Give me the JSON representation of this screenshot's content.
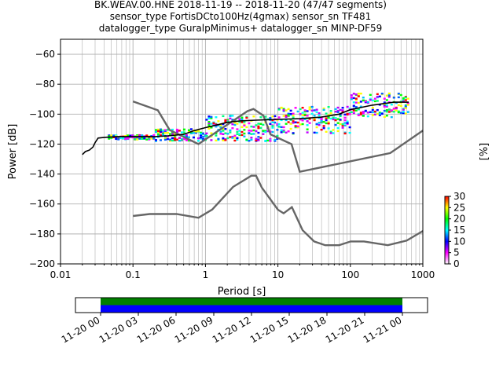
{
  "title_lines": [
    "BK.WEAV.00.HNE   2018-11-19 -- 2018-11-20  (47/47 segments)",
    "sensor_type FortisDCto100Hz(4gmax) sensor_sn TF481",
    "datalogger_type GuralpMinimus+ datalogger_sn MINP-DF59"
  ],
  "chart_data": [
    {
      "type": "heatmap",
      "name": "ppsd",
      "xlabel": "Period [s]",
      "ylabel": "Power [dB]",
      "xscale": "log",
      "xlim": [
        0.01,
        1000
      ],
      "ylim": [
        -200,
        -50
      ],
      "xticks": [
        0.01,
        0.1,
        1,
        10,
        100,
        1000
      ],
      "xtick_labels": [
        "0.01",
        "0.1",
        "1",
        "10",
        "100",
        "1000"
      ],
      "yticks": [
        -60,
        -80,
        -100,
        -120,
        -140,
        -160,
        -180,
        -200
      ],
      "grid": true,
      "colorbar": {
        "label": "[%]",
        "min": 0,
        "max": 30,
        "ticks": [
          0,
          5,
          10,
          15,
          20,
          25,
          30
        ],
        "colors": [
          "#ffffff",
          "#ff00ff",
          "#0000ff",
          "#00ffff",
          "#00ff00",
          "#ffff00",
          "#ff0000"
        ]
      },
      "density_bands": [
        {
          "period_min": 0.045,
          "period_max": 0.2,
          "power_min": -117,
          "power_max": -114
        },
        {
          "period_min": 0.2,
          "period_max": 1.0,
          "power_min": -118,
          "power_max": -110
        },
        {
          "period_min": 1.0,
          "period_max": 10,
          "power_min": -118,
          "power_max": -101
        },
        {
          "period_min": 10,
          "period_max": 100,
          "power_min": -113,
          "power_max": -95
        },
        {
          "period_min": 100,
          "period_max": 640,
          "power_min": -102,
          "power_max": -86
        }
      ],
      "mean_curve": {
        "color": "#000000",
        "points": [
          [
            0.02,
            -127
          ],
          [
            0.022,
            -125
          ],
          [
            0.025,
            -124
          ],
          [
            0.028,
            -122
          ],
          [
            0.03,
            -119
          ],
          [
            0.033,
            -116
          ],
          [
            0.04,
            -115.5
          ],
          [
            0.06,
            -115
          ],
          [
            0.1,
            -115
          ],
          [
            0.2,
            -115
          ],
          [
            0.3,
            -114.5
          ],
          [
            0.5,
            -113.5
          ],
          [
            0.7,
            -111
          ],
          [
            1,
            -109
          ],
          [
            1.5,
            -107
          ],
          [
            2,
            -105.5
          ],
          [
            3,
            -104.5
          ],
          [
            5,
            -104
          ],
          [
            10,
            -103.5
          ],
          [
            20,
            -103
          ],
          [
            40,
            -102
          ],
          [
            70,
            -100
          ],
          [
            100,
            -97
          ],
          [
            200,
            -94
          ],
          [
            400,
            -92
          ],
          [
            640,
            -92
          ]
        ]
      },
      "noise_models": [
        {
          "name": "NHNM",
          "color": "#666666",
          "points": [
            [
              0.1,
              -91.5
            ],
            [
              0.22,
              -97.4
            ],
            [
              0.32,
              -110.5
            ],
            [
              0.8,
              -120
            ],
            [
              3.8,
              -98
            ],
            [
              4.6,
              -96.5
            ],
            [
              6.3,
              -101
            ],
            [
              7.9,
              -113.5
            ],
            [
              15.4,
              -120
            ],
            [
              20,
              -138.5
            ],
            [
              354.8,
              -126
            ],
            [
              1000,
              -111
            ]
          ]
        },
        {
          "name": "NLNM",
          "color": "#666666",
          "points": [
            [
              0.1,
              -168
            ],
            [
              0.17,
              -166.7
            ],
            [
              0.4,
              -166.7
            ],
            [
              0.8,
              -169.2
            ],
            [
              1.24,
              -163.7
            ],
            [
              2.4,
              -148.6
            ],
            [
              4.3,
              -141.1
            ],
            [
              5,
              -141.1
            ],
            [
              6,
              -149
            ],
            [
              10,
              -163.8
            ],
            [
              12,
              -166.2
            ],
            [
              15.6,
              -162.1
            ],
            [
              21.9,
              -177.5
            ],
            [
              31.6,
              -185
            ],
            [
              45,
              -187.5
            ],
            [
              70,
              -187.5
            ],
            [
              101,
              -185
            ],
            [
              154,
              -185
            ],
            [
              328,
              -187.5
            ],
            [
              600,
              -184.4
            ],
            [
              1000,
              -178
            ]
          ]
        }
      ]
    },
    {
      "type": "bar",
      "name": "data-coverage",
      "x_range": [
        "2018-11-20 00:00",
        "2018-11-21 00:00"
      ],
      "xlim": [
        "2018-11-19 22:00",
        "2018-11-21 02:00"
      ],
      "xtick_labels": [
        "11-20 00",
        "11-20 03",
        "11-20 06",
        "11-20 09",
        "11-20 12",
        "11-20 15",
        "11-20 18",
        "11-20 21",
        "11-21 00"
      ],
      "series": [
        {
          "color": "#008000",
          "start": "2018-11-20 00:00",
          "end": "2018-11-21 00:00"
        },
        {
          "color": "#0000ff",
          "start": "2018-11-20 00:00",
          "end": "2018-11-21 00:00"
        }
      ]
    }
  ]
}
